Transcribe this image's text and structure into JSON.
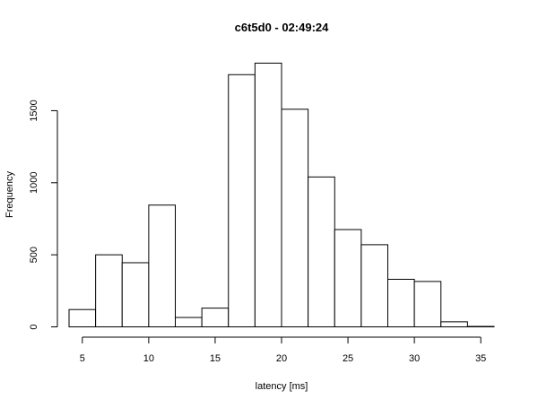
{
  "chart_data": {
    "type": "bar",
    "subtype": "histogram",
    "title": "c6t5d0 - 02:49:24",
    "xlabel": "latency [ms]",
    "ylabel": "Frequency",
    "bins": [
      {
        "x0": 4,
        "x1": 6,
        "count": 120
      },
      {
        "x0": 6,
        "x1": 8,
        "count": 500
      },
      {
        "x0": 8,
        "x1": 10,
        "count": 445
      },
      {
        "x0": 10,
        "x1": 12,
        "count": 845
      },
      {
        "x0": 12,
        "x1": 14,
        "count": 65
      },
      {
        "x0": 14,
        "x1": 16,
        "count": 130
      },
      {
        "x0": 16,
        "x1": 18,
        "count": 1750
      },
      {
        "x0": 18,
        "x1": 20,
        "count": 1830
      },
      {
        "x0": 20,
        "x1": 22,
        "count": 1510
      },
      {
        "x0": 22,
        "x1": 24,
        "count": 1040
      },
      {
        "x0": 24,
        "x1": 26,
        "count": 675
      },
      {
        "x0": 26,
        "x1": 28,
        "count": 570
      },
      {
        "x0": 28,
        "x1": 30,
        "count": 330
      },
      {
        "x0": 30,
        "x1": 32,
        "count": 315
      },
      {
        "x0": 32,
        "x1": 34,
        "count": 35
      },
      {
        "x0": 34,
        "x1": 36,
        "count": 3
      }
    ],
    "xlim": [
      4,
      36
    ],
    "ylim": [
      0,
      1830
    ],
    "xticks": [
      5,
      10,
      15,
      20,
      25,
      30,
      35
    ],
    "yticks": [
      0,
      500,
      1000,
      1500
    ],
    "grid": false,
    "colors": {
      "bar_fill": "#ffffff",
      "bar_stroke": "#000000",
      "axis": "#000000"
    }
  }
}
